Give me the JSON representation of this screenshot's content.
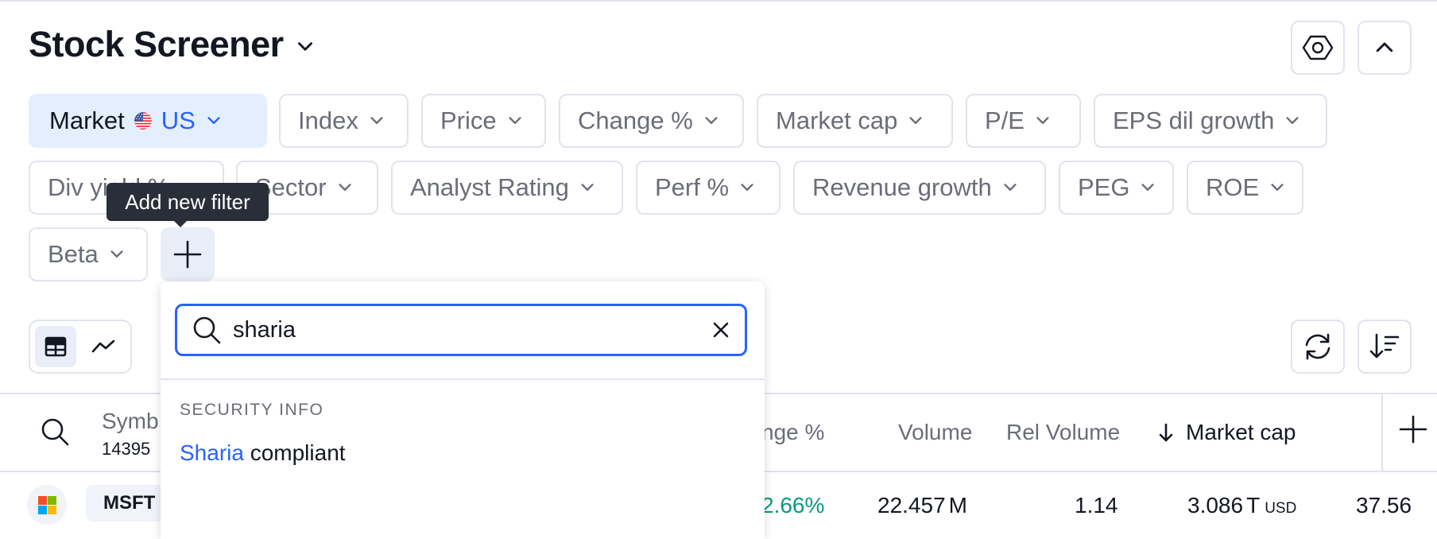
{
  "header": {
    "title": "Stock Screener"
  },
  "toolbar_icons": {
    "settings": "hexagon-settings-icon",
    "collapse": "chevron-up-icon",
    "refresh": "refresh-icon",
    "sort": "sort-icon"
  },
  "filters": {
    "market": {
      "label": "Market",
      "value": "US"
    },
    "row1": [
      "Index",
      "Price",
      "Change %",
      "Market cap",
      "P/E",
      "EPS dil growth"
    ],
    "row2": [
      "Div yield %",
      "Sector",
      "Analyst Rating",
      "Perf %",
      "Revenue growth",
      "PEG",
      "ROE"
    ],
    "row3": [
      "Beta"
    ]
  },
  "tooltip": {
    "text": "Add new filter"
  },
  "dropdown": {
    "search_value": "sharia",
    "section": "SECURITY INFO",
    "result_highlight": "Sharia",
    "result_rest": " compliant"
  },
  "table": {
    "symbol_header": "Symb",
    "count": "14395",
    "headers": {
      "change": "nge %",
      "volume": "Volume",
      "rel_volume": "Rel Volume",
      "market_cap": "Market cap"
    },
    "row": {
      "symbol": "MSFT",
      "change": "2.66%",
      "volume": "22.457",
      "volume_unit": "M",
      "rel_volume": "1.14",
      "market_cap": "3.086",
      "market_cap_unit": "T",
      "currency": "USD",
      "pe": "37.56"
    }
  },
  "colors": {
    "accent": "#2962ff",
    "positive": "#089981",
    "market_chip_bg": "#e3effd"
  }
}
